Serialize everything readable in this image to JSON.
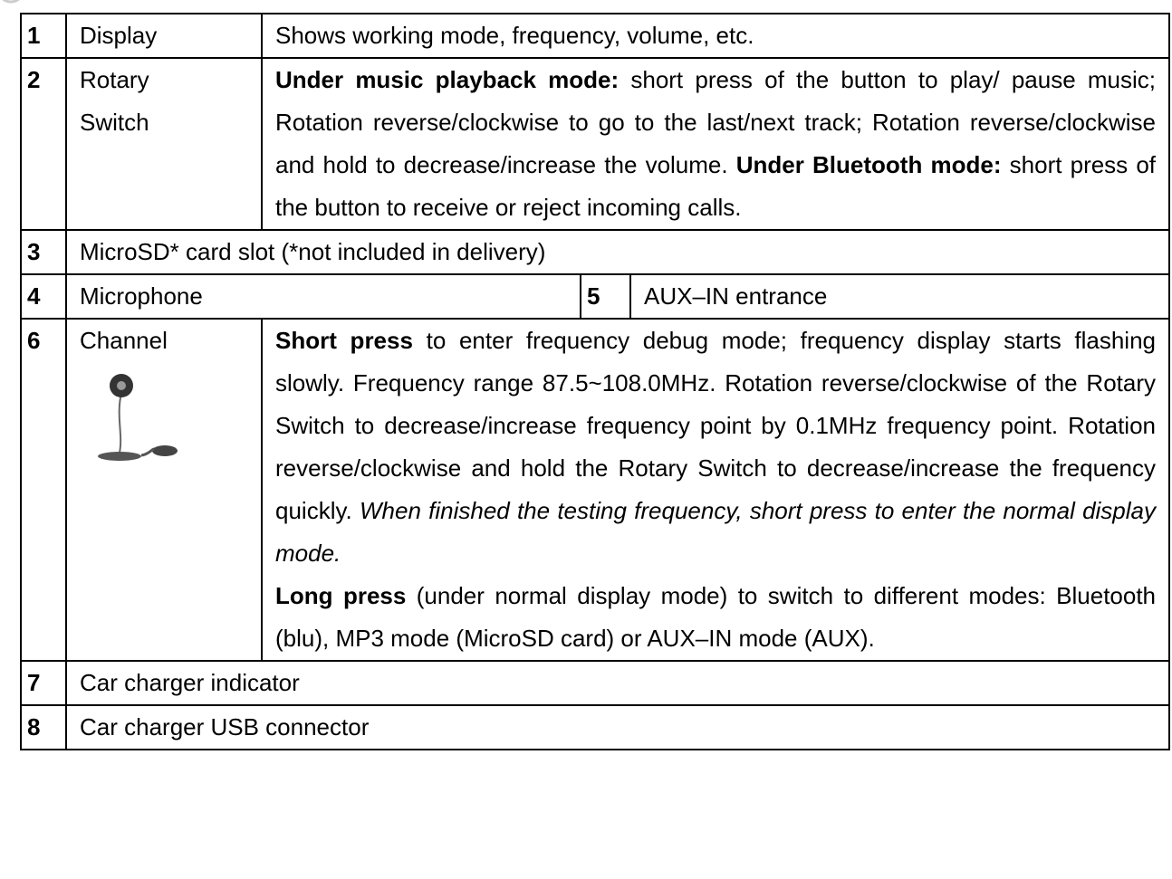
{
  "table": {
    "rows": [
      {
        "num": "1",
        "label": "Display",
        "desc": [
          [
            {
              "text": "Shows working mode, frequency, volume, etc."
            }
          ]
        ]
      },
      {
        "num": "2",
        "label": "Rotary Switch",
        "desc": [
          [
            {
              "bold": "Under music playback mode:"
            },
            {
              "text": " short press of the button to play/ pause music; Rotation reverse/clockwise to go to the last/next track; Rotation reverse/clockwise and hold to decrease/increase the volume. "
            },
            {
              "bold": "Under Bluetooth mode:"
            },
            {
              "text": " short press of the button to receive or reject incoming calls."
            }
          ]
        ]
      },
      {
        "num": "3",
        "text": "MicroSD* card slot (*not included in delivery)"
      },
      {
        "num": "4",
        "label": "Microphone",
        "num2": "5",
        "label2": "AUX–IN entrance"
      },
      {
        "num": "6",
        "label": "Channel",
        "desc": [
          [
            {
              "bold": "Short press"
            },
            {
              "text": " to enter frequency debug mode; frequency display starts flashing slowly. Frequency range 87.5~108.0MHz. Rotation reverse/clockwise of the Rotary Switch to decrease/increase frequency point by 0.1MHz frequency point. Rotation reverse/clockwise and hold the Rotary Switch to decrease/increase the frequency quickly. "
            },
            {
              "italic": "When finished the testing frequency, short press to enter the normal display mode."
            }
          ],
          [
            {
              "bold": "Long press"
            },
            {
              "text": " (under normal display mode) to switch to different modes: Bluetooth (blu), MP3 mode (MicroSD card) or AUX–IN mode (AUX)."
            }
          ]
        ]
      },
      {
        "num": "7",
        "text": "Car charger indicator"
      },
      {
        "num": "8",
        "text": "Car charger USB connector"
      }
    ]
  }
}
